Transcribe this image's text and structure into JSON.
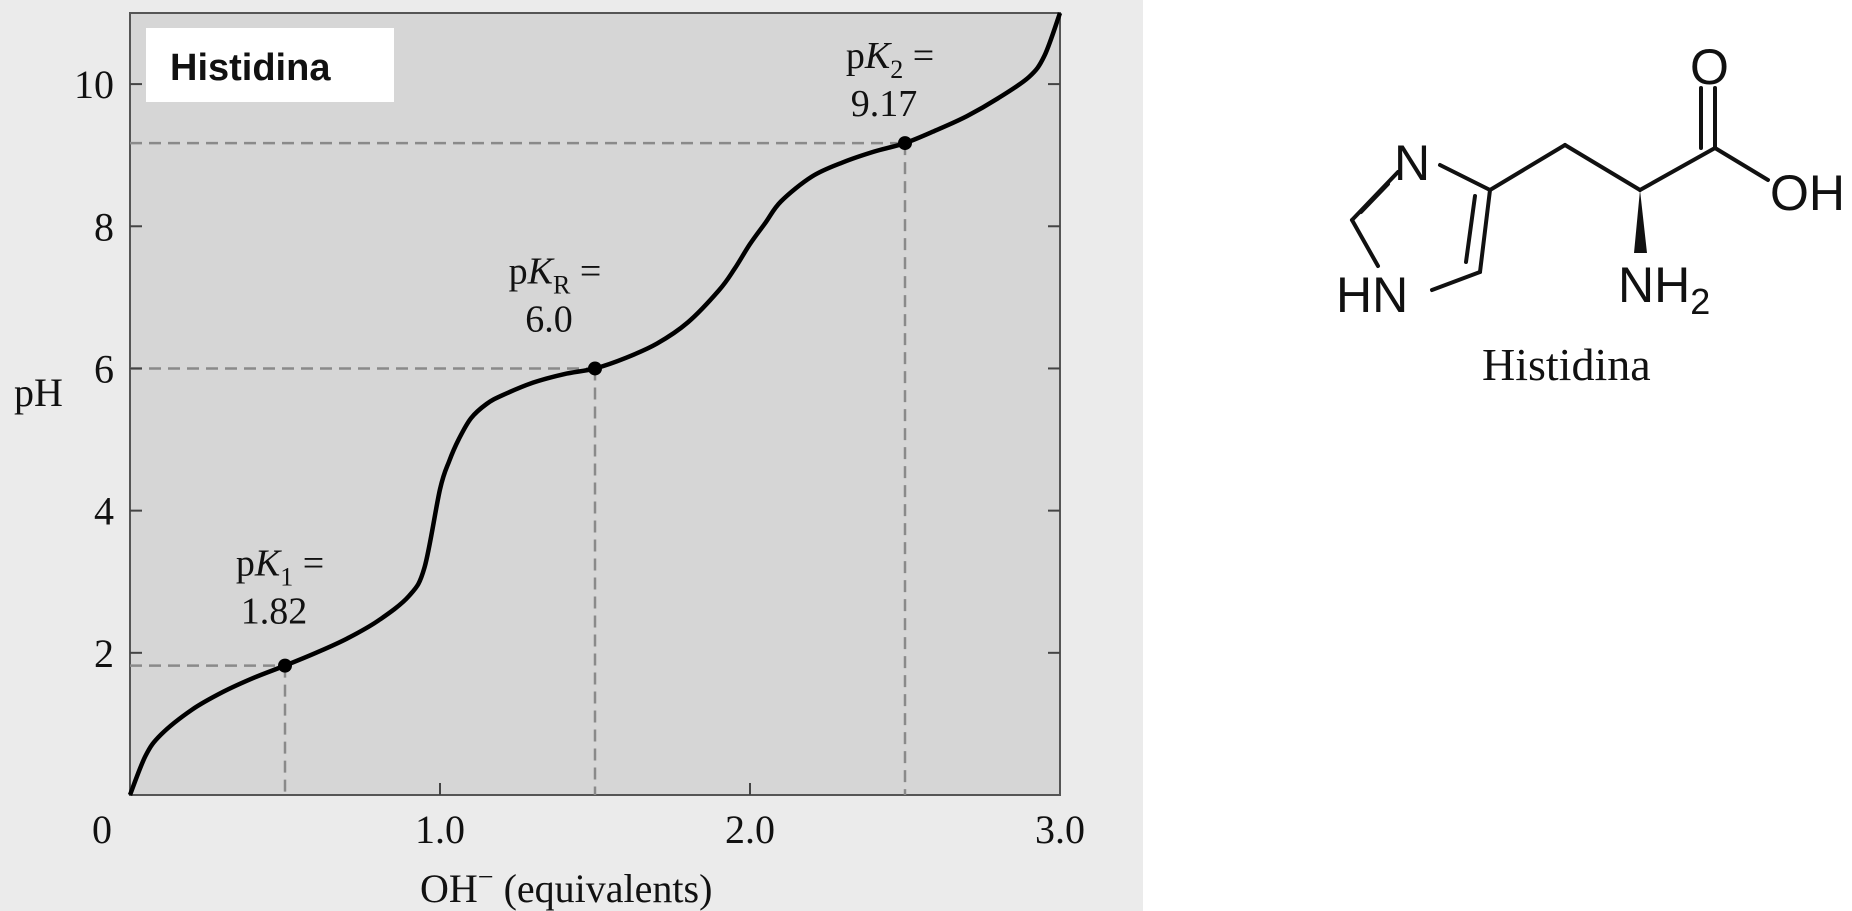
{
  "chart_data": {
    "type": "line",
    "title": "Histidina",
    "xlabel_main": "OH",
    "xlabel_sup": "−",
    "xlabel_rest": " (equivalents)",
    "ylabel": "pH",
    "xlim": [
      0,
      3.0
    ],
    "ylim": [
      0,
      11
    ],
    "x_ticks": [
      {
        "value": 0,
        "label": "0"
      },
      {
        "value": 1.0,
        "label": "1.0"
      },
      {
        "value": 2.0,
        "label": "2.0"
      },
      {
        "value": 3.0,
        "label": "3.0"
      }
    ],
    "y_ticks": [
      {
        "value": 2,
        "label": "2"
      },
      {
        "value": 4,
        "label": "4"
      },
      {
        "value": 6,
        "label": "6"
      },
      {
        "value": 8,
        "label": "8"
      },
      {
        "value": 10,
        "label": "10"
      }
    ],
    "series": [
      {
        "x": [
          0.0,
          0.05,
          0.1,
          0.2,
          0.3,
          0.4,
          0.5,
          0.6,
          0.7,
          0.8,
          0.9,
          0.95,
          1.0,
          1.03,
          1.06,
          1.1,
          1.15,
          1.2,
          1.3,
          1.4,
          1.5,
          1.6,
          1.7,
          1.8,
          1.9,
          1.95,
          2.0,
          2.05,
          2.1,
          2.2,
          2.3,
          2.4,
          2.5,
          2.6,
          2.7,
          2.8,
          2.9,
          2.95,
          3.0
        ],
        "y": [
          0.0,
          0.55,
          0.85,
          1.2,
          1.45,
          1.65,
          1.82,
          2.0,
          2.2,
          2.45,
          2.8,
          3.2,
          4.3,
          4.7,
          5.0,
          5.3,
          5.5,
          5.62,
          5.8,
          5.92,
          6.0,
          6.15,
          6.35,
          6.65,
          7.1,
          7.4,
          7.75,
          8.05,
          8.35,
          8.7,
          8.9,
          9.05,
          9.17,
          9.35,
          9.55,
          9.8,
          10.1,
          10.4,
          11.0
        ]
      }
    ],
    "annotations": [
      {
        "name": "pK1",
        "x": 0.5,
        "y": 1.82,
        "label_top": "pK",
        "label_sub": "1",
        "label_eq": " =",
        "value_label": "1.82"
      },
      {
        "name": "pKR",
        "x": 1.5,
        "y": 6.0,
        "label_top": "pK",
        "label_sub": "R",
        "label_eq": " =",
        "value_label": "6.0"
      },
      {
        "name": "pK2",
        "x": 2.5,
        "y": 9.17,
        "label_top": "pK",
        "label_sub": "2",
        "label_eq": " =",
        "value_label": "9.17"
      }
    ],
    "grid": false,
    "background": "#d9d9d9",
    "curve_color": "#000000",
    "guide_color": "#8a8a8a"
  },
  "molecule": {
    "caption": "Histidina",
    "labels": {
      "n_ring": "N",
      "hn_ring": "HN",
      "o": "O",
      "oh": "OH",
      "nh": "NH",
      "nh_sub": "2"
    }
  }
}
